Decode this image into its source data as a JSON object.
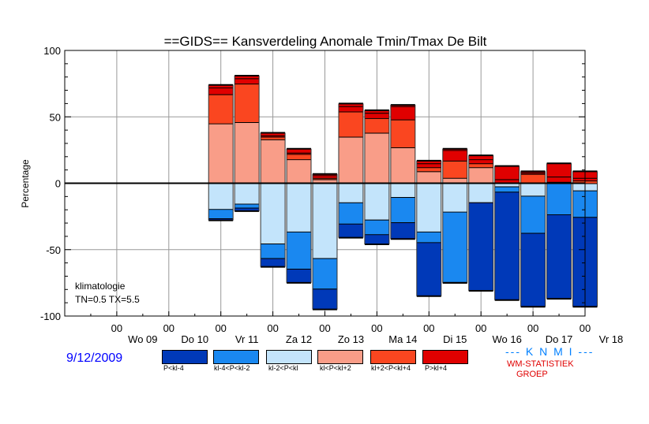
{
  "chart_data": {
    "type": "bar",
    "title": "==GIDS== Kansverdeling Anomale Tmin/Tmax De Bilt",
    "ylabel": "Percentage",
    "ylim": [
      -100,
      100
    ],
    "yticks": [
      "100",
      "50",
      "0",
      "-50",
      "-100"
    ],
    "ytick_values": [
      100,
      50,
      0,
      -50,
      -100
    ],
    "hour_label": "00",
    "day_labels": [
      "Wo 09",
      "Do 10",
      "Vr 11",
      "Za 12",
      "Zo 13",
      "Ma 14",
      "Di 15",
      "Wo 16",
      "Do 17",
      "Vr 18"
    ],
    "x_range": [
      0,
      20
    ],
    "bars": [
      {
        "x": 6,
        "neg": [
          -20,
          -27,
          -28
        ],
        "pos": [
          45,
          67,
          72,
          74
        ]
      },
      {
        "x": 7,
        "neg": [
          -16,
          -19,
          -21
        ],
        "pos": [
          46,
          75,
          79,
          81
        ]
      },
      {
        "x": 8,
        "neg": [
          -46,
          -57,
          -63
        ],
        "pos": [
          33,
          35,
          36,
          38
        ]
      },
      {
        "x": 9,
        "neg": [
          -37,
          -65,
          -75
        ],
        "pos": [
          18,
          22,
          23,
          26
        ]
      },
      {
        "x": 10,
        "neg": [
          -57,
          -80,
          -95
        ],
        "pos": [
          3,
          4,
          6,
          7
        ]
      },
      {
        "x": 11,
        "neg": [
          -15,
          -31,
          -41
        ],
        "pos": [
          35,
          54,
          58,
          60
        ]
      },
      {
        "x": 12,
        "neg": [
          -28,
          -39,
          -46
        ],
        "pos": [
          38,
          49,
          53,
          55
        ]
      },
      {
        "x": 13,
        "neg": [
          -11,
          -30,
          -42
        ],
        "pos": [
          27,
          48,
          58,
          59
        ]
      },
      {
        "x": 14,
        "neg": [
          -37,
          -45,
          -85
        ],
        "pos": [
          9,
          12,
          15,
          17
        ]
      },
      {
        "x": 15,
        "neg": [
          -22,
          -75,
          -75
        ],
        "pos": [
          4,
          17,
          25,
          26
        ]
      },
      {
        "x": 16,
        "neg": [
          -15,
          -15,
          -81
        ],
        "pos": [
          12,
          15,
          18,
          21
        ]
      },
      {
        "x": 17,
        "neg": [
          -3,
          -7,
          -88
        ],
        "pos": [
          0,
          0,
          3,
          13
        ]
      },
      {
        "x": 18,
        "neg": [
          -10,
          -38,
          -93
        ],
        "pos": [
          0,
          7,
          8,
          9
        ]
      },
      {
        "x": 19,
        "neg": [
          0,
          -24,
          -87
        ],
        "pos": [
          0,
          1,
          5,
          15
        ]
      },
      {
        "x": 20,
        "neg": [
          -6,
          -26,
          -93
        ],
        "pos": [
          0,
          2,
          4,
          9
        ]
      }
    ],
    "legend": [
      {
        "label": "P<kl-4",
        "color": "#0039b8"
      },
      {
        "label": "kl-4<P<kl-2",
        "color": "#1a88f0"
      },
      {
        "label": "kl-2<P<kl",
        "color": "#c3e4fb"
      },
      {
        "label": "kl<P<kl+2",
        "color": "#f99d88"
      },
      {
        "label": "kl+2<P<kl+4",
        "color": "#fa4620"
      },
      {
        "label": "P>kl+4",
        "color": "#e00000"
      }
    ],
    "legend_placement": "bottom",
    "grid": true
  },
  "annotations": {
    "climatology_title": "klimatologie",
    "climatology_values": "TN=0.5  TX=5.5"
  },
  "footer": {
    "date": "9/12/2009",
    "org": "--- K N M I ---",
    "group_line1": "WM-STATISTIEK",
    "group_line2": "GROEP"
  }
}
